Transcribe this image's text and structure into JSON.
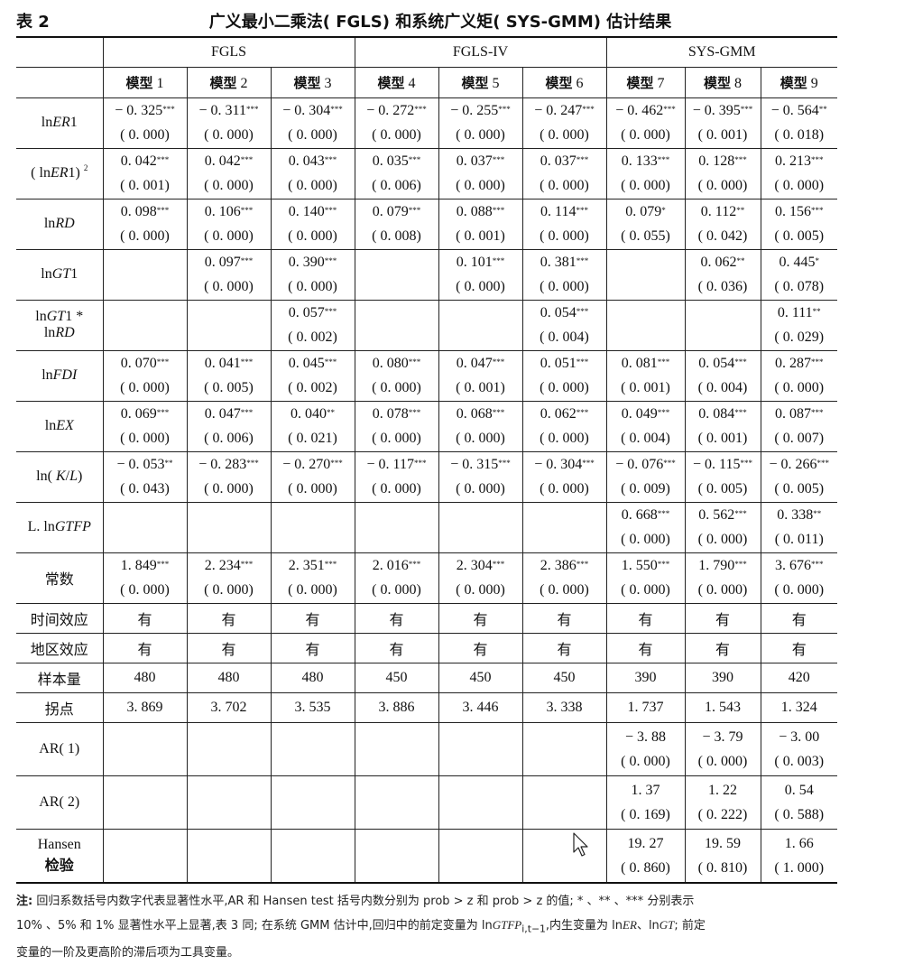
{
  "caption": {
    "table_number": "表 2",
    "title": "广义最小二乘法( FGLS) 和系统广义矩( SYS-GMM) 估计结果"
  },
  "header": {
    "groups": [
      "FGLS",
      "FGLS-IV",
      "SYS-GMM"
    ],
    "models": [
      {
        "cn": "模型",
        "num": "1"
      },
      {
        "cn": "模型",
        "num": "2"
      },
      {
        "cn": "模型",
        "num": "3"
      },
      {
        "cn": "模型",
        "num": "4"
      },
      {
        "cn": "模型",
        "num": "5"
      },
      {
        "cn": "模型",
        "num": "6"
      },
      {
        "cn": "模型",
        "num": "7"
      },
      {
        "cn": "模型",
        "num": "8"
      },
      {
        "cn": "模型",
        "num": "9"
      }
    ]
  },
  "rows": [
    {
      "type": "pair",
      "label": "ln<i>ER</i>1",
      "cells": [
        [
          "− 0. 325",
          "***",
          "( 0. 000)"
        ],
        [
          "− 0. 311",
          "***",
          "( 0. 000)"
        ],
        [
          "− 0. 304",
          "***",
          "( 0. 000)"
        ],
        [
          "− 0. 272",
          "***",
          "( 0. 000)"
        ],
        [
          "− 0. 255",
          "***",
          "( 0. 000)"
        ],
        [
          "− 0. 247",
          "***",
          "( 0. 000)"
        ],
        [
          "− 0. 462",
          "***",
          "( 0. 000)"
        ],
        [
          "− 0. 395",
          "***",
          "( 0. 001)"
        ],
        [
          "− 0. 564",
          "**",
          "( 0. 018)"
        ]
      ]
    },
    {
      "type": "pair",
      "label": "( ln<i>ER</i>1) <sup>2</sup>",
      "cells": [
        [
          "0. 042",
          "***",
          "( 0. 001)"
        ],
        [
          "0. 042",
          "***",
          "( 0. 000)"
        ],
        [
          "0. 043",
          "***",
          "( 0. 000)"
        ],
        [
          "0. 035",
          "***",
          "( 0. 006)"
        ],
        [
          "0. 037",
          "***",
          "( 0. 000)"
        ],
        [
          "0. 037",
          "***",
          "( 0. 000)"
        ],
        [
          "0. 133",
          "***",
          "( 0. 000)"
        ],
        [
          "0. 128",
          "***",
          "( 0. 000)"
        ],
        [
          "0. 213",
          "***",
          "( 0. 000)"
        ]
      ]
    },
    {
      "type": "pair",
      "label": "ln<i>RD</i>",
      "cells": [
        [
          "0. 098",
          "***",
          "( 0. 000)"
        ],
        [
          "0. 106",
          "***",
          "( 0. 000)"
        ],
        [
          "0. 140",
          "***",
          "( 0. 000)"
        ],
        [
          "0. 079",
          "***",
          "( 0. 008)"
        ],
        [
          "0. 088",
          "***",
          "( 0. 001)"
        ],
        [
          "0. 114",
          "***",
          "( 0. 000)"
        ],
        [
          "0. 079",
          "*",
          "( 0. 055)"
        ],
        [
          "0. 112",
          "**",
          "( 0. 042)"
        ],
        [
          "0. 156",
          "***",
          "( 0. 005)"
        ]
      ]
    },
    {
      "type": "pair",
      "label": "ln<i>GT</i>1",
      "cells": [
        [
          "",
          "",
          ""
        ],
        [
          "0. 097",
          "***",
          "( 0. 000)"
        ],
        [
          "0. 390",
          "***",
          "( 0. 000)"
        ],
        [
          "",
          "",
          ""
        ],
        [
          "0. 101",
          "***",
          "( 0. 000)"
        ],
        [
          "0. 381",
          "***",
          "( 0. 000)"
        ],
        [
          "",
          "",
          ""
        ],
        [
          "0. 062",
          "**",
          "( 0. 036)"
        ],
        [
          "0. 445",
          "*",
          "( 0. 078)"
        ]
      ]
    },
    {
      "type": "pair",
      "label": "ln<i>GT</i>1 *<br>ln<i>RD</i>",
      "cells": [
        [
          "",
          "",
          ""
        ],
        [
          "",
          "",
          ""
        ],
        [
          "0. 057",
          "***",
          "( 0. 002)"
        ],
        [
          "",
          "",
          ""
        ],
        [
          "",
          "",
          ""
        ],
        [
          "0. 054",
          "***",
          "( 0. 004)"
        ],
        [
          "",
          "",
          ""
        ],
        [
          "",
          "",
          ""
        ],
        [
          "0. 111",
          "**",
          "( 0. 029)"
        ]
      ]
    },
    {
      "type": "pair",
      "label": "ln<i>FDI</i>",
      "cells": [
        [
          "0. 070",
          "***",
          "( 0. 000)"
        ],
        [
          "0. 041",
          "***",
          "( 0. 005)"
        ],
        [
          "0. 045",
          "***",
          "( 0. 002)"
        ],
        [
          "0. 080",
          "***",
          "( 0. 000)"
        ],
        [
          "0. 047",
          "***",
          "( 0. 001)"
        ],
        [
          "0. 051",
          "***",
          "( 0. 000)"
        ],
        [
          "0. 081",
          "***",
          "( 0. 001)"
        ],
        [
          "0. 054",
          "***",
          "( 0. 004)"
        ],
        [
          "0. 287",
          "***",
          "( 0. 000)"
        ]
      ]
    },
    {
      "type": "pair",
      "label": "ln<i>EX</i>",
      "cells": [
        [
          "0. 069",
          "***",
          "( 0. 000)"
        ],
        [
          "0. 047",
          "***",
          "( 0. 006)"
        ],
        [
          "0. 040",
          "**",
          "( 0. 021)"
        ],
        [
          "0. 078",
          "***",
          "( 0. 000)"
        ],
        [
          "0. 068",
          "***",
          "( 0. 000)"
        ],
        [
          "0. 062",
          "***",
          "( 0. 000)"
        ],
        [
          "0. 049",
          "***",
          "( 0. 004)"
        ],
        [
          "0. 084",
          "***",
          "( 0. 001)"
        ],
        [
          "0. 087",
          "***",
          "( 0. 007)"
        ]
      ]
    },
    {
      "type": "pair",
      "label": "ln( <i>K</i>/<i>L</i>)",
      "cells": [
        [
          "− 0. 053",
          "**",
          "( 0. 043)"
        ],
        [
          "− 0. 283",
          "***",
          "( 0. 000)"
        ],
        [
          "− 0. 270",
          "***",
          "( 0. 000)"
        ],
        [
          "− 0. 117",
          "***",
          "( 0. 000)"
        ],
        [
          "− 0. 315",
          "***",
          "( 0. 000)"
        ],
        [
          "− 0. 304",
          "***",
          "( 0. 000)"
        ],
        [
          "− 0. 076",
          "***",
          "( 0. 009)"
        ],
        [
          "− 0. 115",
          "***",
          "( 0. 005)"
        ],
        [
          "− 0. 266",
          "***",
          "( 0. 005)"
        ]
      ]
    },
    {
      "type": "pair",
      "label": "L. ln<i>GTFP</i>",
      "cells": [
        [
          "",
          "",
          ""
        ],
        [
          "",
          "",
          ""
        ],
        [
          "",
          "",
          ""
        ],
        [
          "",
          "",
          ""
        ],
        [
          "",
          "",
          ""
        ],
        [
          "",
          "",
          ""
        ],
        [
          "0. 668",
          "***",
          "( 0. 000)"
        ],
        [
          "0. 562",
          "***",
          "( 0. 000)"
        ],
        [
          "0. 338",
          "**",
          "( 0. 011)"
        ]
      ]
    },
    {
      "type": "pair",
      "label": "常数",
      "label_cn": true,
      "cells": [
        [
          "1. 849",
          "***",
          "( 0. 000)"
        ],
        [
          "2. 234",
          "***",
          "( 0. 000)"
        ],
        [
          "2. 351",
          "***",
          "( 0. 000)"
        ],
        [
          "2. 016",
          "***",
          "( 0. 000)"
        ],
        [
          "2. 304",
          "***",
          "( 0. 000)"
        ],
        [
          "2. 386",
          "***",
          "( 0. 000)"
        ],
        [
          "1. 550",
          "***",
          "( 0. 000)"
        ],
        [
          "1. 790",
          "***",
          "( 0. 000)"
        ],
        [
          "3. 676",
          "***",
          "( 0. 000)"
        ]
      ]
    },
    {
      "type": "single",
      "label": "时间效应",
      "label_cn": true,
      "cn_values": true,
      "cells": [
        "有",
        "有",
        "有",
        "有",
        "有",
        "有",
        "有",
        "有",
        "有"
      ]
    },
    {
      "type": "single",
      "label": "地区效应",
      "label_cn": true,
      "cn_values": true,
      "cells": [
        "有",
        "有",
        "有",
        "有",
        "有",
        "有",
        "有",
        "有",
        "有"
      ]
    },
    {
      "type": "single",
      "label": "样本量",
      "label_cn": true,
      "cells": [
        "480",
        "480",
        "480",
        "450",
        "450",
        "450",
        "390",
        "390",
        "420"
      ]
    },
    {
      "type": "single",
      "label": "拐点",
      "label_cn": true,
      "cells": [
        "3. 869",
        "3. 702",
        "3. 535",
        "3. 886",
        "3. 446",
        "3. 338",
        "1. 737",
        "1. 543",
        "1. 324"
      ]
    },
    {
      "type": "pair",
      "tall": true,
      "label": "AR( 1)",
      "cells": [
        [
          "",
          "",
          ""
        ],
        [
          "",
          "",
          ""
        ],
        [
          "",
          "",
          ""
        ],
        [
          "",
          "",
          ""
        ],
        [
          "",
          "",
          ""
        ],
        [
          "",
          "",
          ""
        ],
        [
          "− 3. 88",
          "",
          "( 0. 000)"
        ],
        [
          "− 3. 79",
          "",
          "( 0. 000)"
        ],
        [
          "− 3. 00",
          "",
          "( 0. 003)"
        ]
      ]
    },
    {
      "type": "pair",
      "tall": true,
      "label": "AR( 2)",
      "cells": [
        [
          "",
          "",
          ""
        ],
        [
          "",
          "",
          ""
        ],
        [
          "",
          "",
          ""
        ],
        [
          "",
          "",
          ""
        ],
        [
          "",
          "",
          ""
        ],
        [
          "",
          "",
          ""
        ],
        [
          "1. 37",
          "",
          "( 0. 169)"
        ],
        [
          "1. 22",
          "",
          "( 0. 222)"
        ],
        [
          "0. 54",
          "",
          "( 0. 588)"
        ]
      ]
    },
    {
      "type": "pair",
      "tall": true,
      "last": true,
      "label": "Hansen<br><b class=\"bold-cn\">检验</b>",
      "cells": [
        [
          "",
          "",
          ""
        ],
        [
          "",
          "",
          ""
        ],
        [
          "",
          "",
          ""
        ],
        [
          "",
          "",
          ""
        ],
        [
          "",
          "",
          ""
        ],
        [
          "",
          "",
          ""
        ],
        [
          "19. 27",
          "",
          "( 0. 860)"
        ],
        [
          "19. 59",
          "",
          "( 0. 810)"
        ],
        [
          "1. 66",
          "",
          "( 1. 000)"
        ]
      ]
    }
  ],
  "note": {
    "lead": "注:",
    "line1": " 回归系数括号内数字代表显著性水平,AR 和 Hansen test 括号内数分别为 prob > z 和 prob > z 的值; * 、** 、*** 分别表示",
    "line2": "10% 、5% 和 1% 显著性水平上显著,表 3 同; 在系统 GMM 估计中,回归中的前定变量为 ln<i>GTFP</i><sub>i,t−1</sub>,内生变量为 ln<i>ER</i>、ln<i>GT</i>; 前定",
    "line3": "变量的一阶及更高阶的滞后项为工具变量。"
  }
}
